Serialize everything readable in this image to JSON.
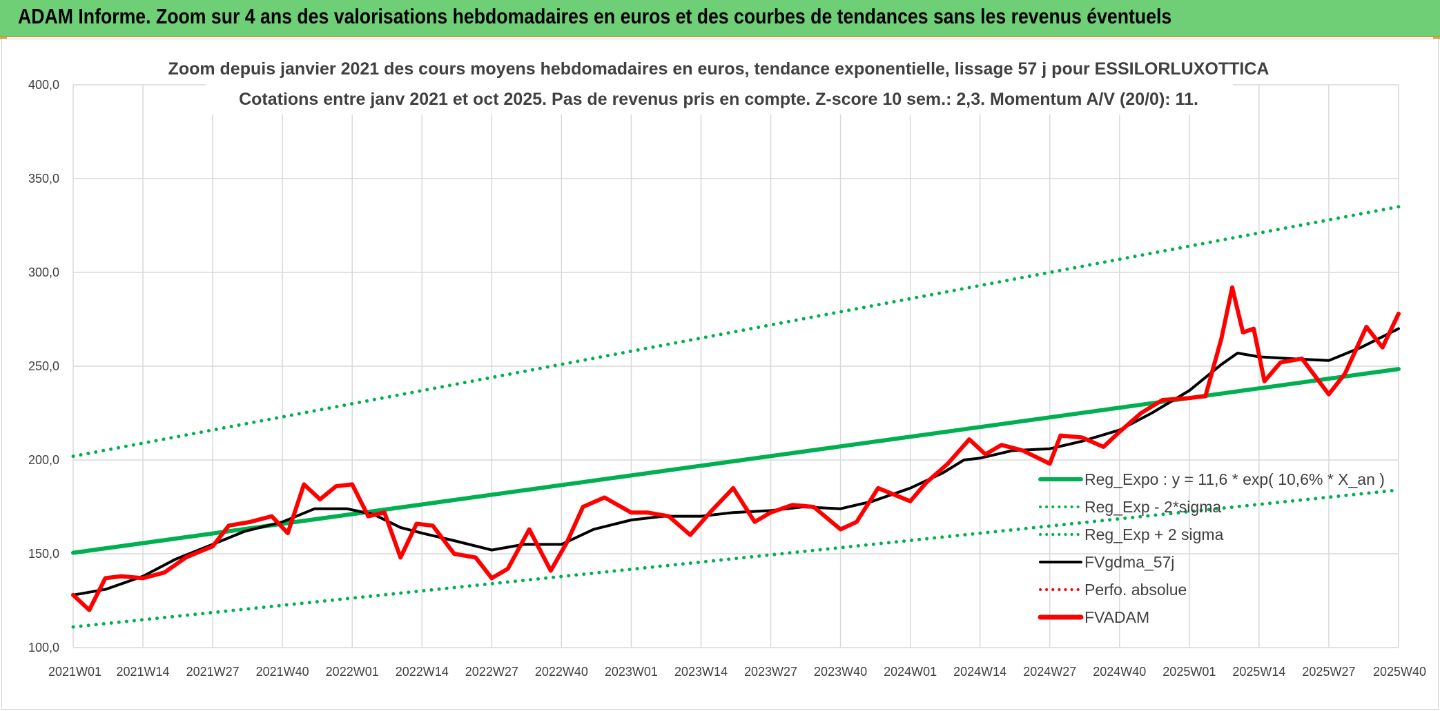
{
  "banner": {
    "title": "ADAM Informe. Zoom sur 4 ans des valorisations hebdomadaires en euros et des courbes de tendances sans les revenus éventuels"
  },
  "chart_data": {
    "type": "line",
    "title": "Zoom depuis janvier 2021 des cours moyens hebdomadaires en euros, tendance exponentielle, lissage 57 j pour ESSILORLUXOTTICA",
    "subtitle": "Cotations entre janv 2021 et oct 2025. Pas de revenus pris en compte. Z-score 10 sem.: 2,3. Momentum A/V (20/0): 11.",
    "ylim": [
      100,
      400
    ],
    "y_ticks": [
      "100,0",
      "150,0",
      "200,0",
      "250,0",
      "300,0",
      "350,0",
      "400,0"
    ],
    "x_ticks": [
      "2021W01",
      "2021W14",
      "2021W27",
      "2021W40",
      "2022W01",
      "2022W14",
      "2022W27",
      "2022W40",
      "2023W01",
      "2023W14",
      "2023W27",
      "2023W40",
      "2024W01",
      "2024W14",
      "2024W27",
      "2024W40",
      "2025W01",
      "2025W14",
      "2025W27",
      "2025W40"
    ],
    "grid": true,
    "legend_position": "right-lower",
    "series": [
      {
        "name": "Reg_Expo : y = 11,6 * exp( 10,6% *  X_an )",
        "color": "#00b050",
        "style": "solid",
        "x": [
          "2021W01",
          "2025W40"
        ],
        "y": [
          150.5,
          248.5
        ]
      },
      {
        "name": "Reg_Exp - 2*sigma",
        "color": "#00b050",
        "style": "dotted",
        "x": [
          "2021W01",
          "2025W40"
        ],
        "y": [
          111,
          184
        ]
      },
      {
        "name": "Reg_Exp + 2 sigma",
        "color": "#00b050",
        "style": "dotted",
        "x": [
          "2021W01",
          "2025W40"
        ],
        "y": [
          202,
          335
        ]
      },
      {
        "name": "FVgdma_57j",
        "color": "#000000",
        "style": "solid",
        "x": [
          "2021W01",
          "2021W07",
          "2021W14",
          "2021W20",
          "2021W27",
          "2021W33",
          "2021W40",
          "2021W46",
          "2021W52",
          "2022W05",
          "2022W10",
          "2022W14",
          "2022W20",
          "2022W27",
          "2022W33",
          "2022W40",
          "2022W46",
          "2023W01",
          "2023W07",
          "2023W14",
          "2023W20",
          "2023W27",
          "2023W33",
          "2023W40",
          "2023W46",
          "2024W01",
          "2024W07",
          "2024W11",
          "2024W14",
          "2024W20",
          "2024W27",
          "2024W33",
          "2024W40",
          "2024W46",
          "2025W01",
          "2025W07",
          "2025W10",
          "2025W14",
          "2025W20",
          "2025W27",
          "2025W33",
          "2025W40"
        ],
        "y": [
          128,
          131,
          138,
          147,
          155,
          162,
          167,
          174,
          174,
          171,
          164,
          161,
          157,
          152,
          155,
          155,
          163,
          168,
          170,
          170,
          172,
          173,
          175,
          174,
          178,
          185,
          193,
          200,
          201,
          205,
          206,
          210,
          216,
          225,
          237,
          251,
          257,
          255,
          254,
          253,
          260,
          270
        ]
      },
      {
        "name": "Perfo. absolue",
        "color": "#ff0000",
        "style": "dotted",
        "x": [],
        "y": []
      },
      {
        "name": "FVADAM",
        "color": "#ff0000",
        "style": "solid",
        "x": [
          "2021W01",
          "2021W04",
          "2021W07",
          "2021W10",
          "2021W14",
          "2021W18",
          "2021W22",
          "2021W27",
          "2021W30",
          "2021W34",
          "2021W38",
          "2021W41",
          "2021W44",
          "2021W47",
          "2021W50",
          "2022W01",
          "2022W04",
          "2022W07",
          "2022W10",
          "2022W13",
          "2022W16",
          "2022W20",
          "2022W24",
          "2022W27",
          "2022W30",
          "2022W34",
          "2022W38",
          "2022W41",
          "2022W44",
          "2022W48",
          "2023W01",
          "2023W04",
          "2023W08",
          "2023W12",
          "2023W16",
          "2023W20",
          "2023W24",
          "2023W27",
          "2023W31",
          "2023W35",
          "2023W40",
          "2023W43",
          "2023W47",
          "2024W01",
          "2024W04",
          "2024W08",
          "2024W12",
          "2024W15",
          "2024W18",
          "2024W22",
          "2024W27",
          "2024W29",
          "2024W33",
          "2024W37",
          "2024W40",
          "2024W44",
          "2024W48",
          "2025W01",
          "2025W04",
          "2025W07",
          "2025W09",
          "2025W11",
          "2025W13",
          "2025W15",
          "2025W18",
          "2025W22",
          "2025W27",
          "2025W30",
          "2025W34",
          "2025W37",
          "2025W40"
        ],
        "y": [
          128,
          120,
          137,
          138,
          137,
          140,
          148,
          154,
          165,
          167,
          170,
          161,
          187,
          179,
          186,
          187,
          170,
          172,
          148,
          166,
          165,
          150,
          148,
          137,
          142,
          163,
          141,
          156,
          175,
          180,
          172,
          172,
          170,
          160,
          173,
          185,
          167,
          172,
          176,
          175,
          163,
          167,
          185,
          178,
          188,
          198,
          211,
          203,
          208,
          205,
          198,
          213,
          212,
          207,
          215,
          225,
          232,
          233,
          234,
          265,
          292,
          268,
          270,
          242,
          252,
          254,
          235,
          246,
          271,
          260,
          278
        ]
      }
    ]
  }
}
